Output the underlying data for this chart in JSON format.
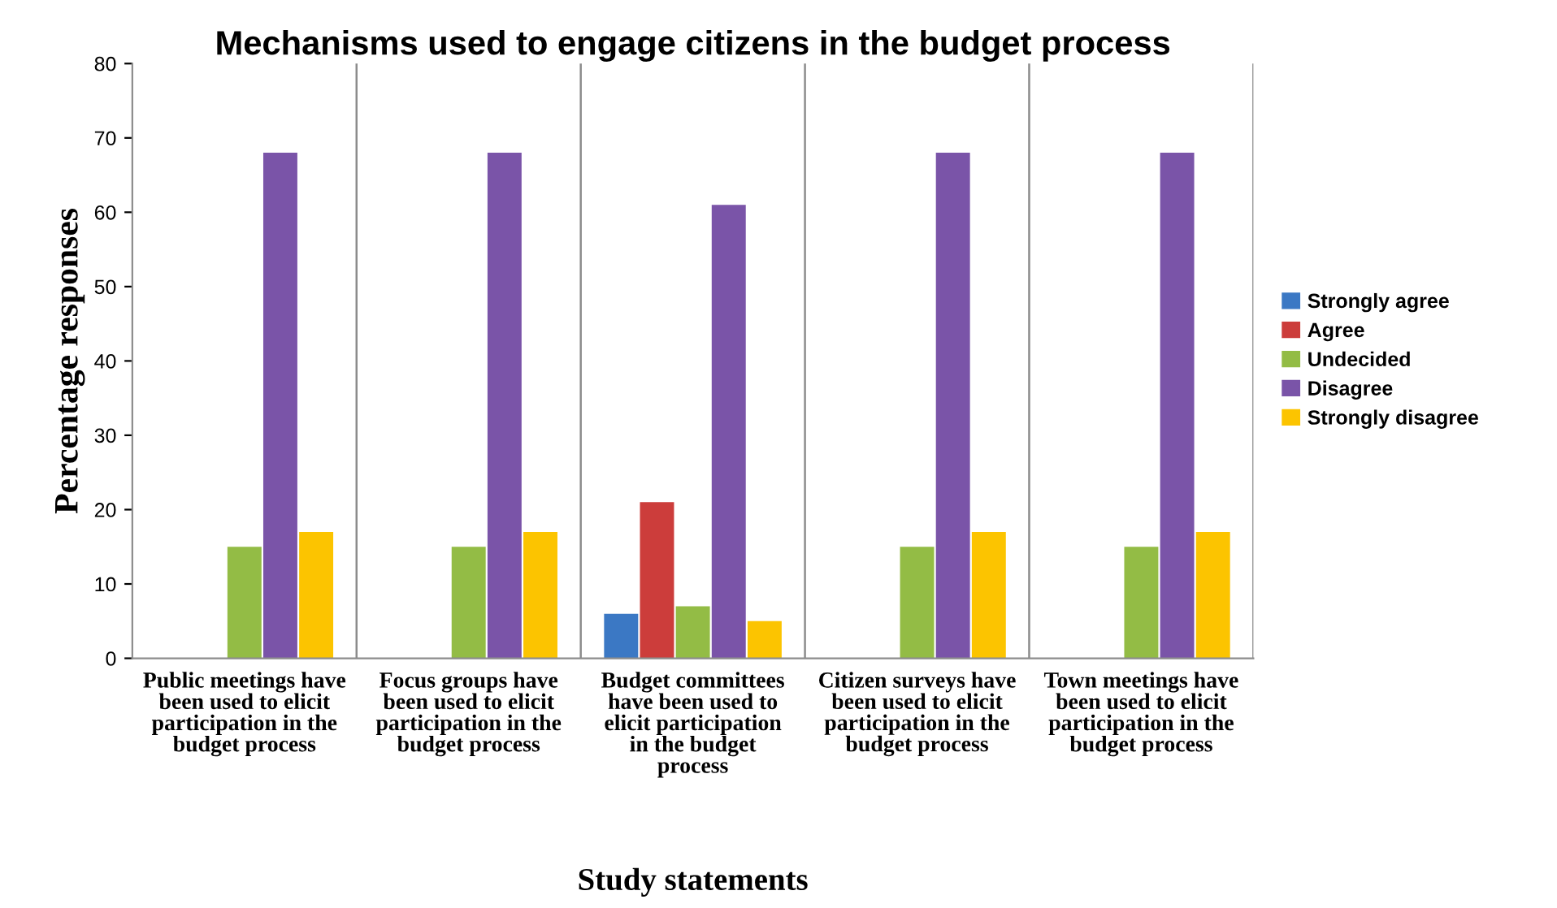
{
  "chart_data": {
    "type": "bar",
    "title": "Mechanisms used to engage citizens in the budget process",
    "xlabel": "Study statements",
    "ylabel": "Percentage responses",
    "categories": [
      "Public meetings have been used to elicit participation in the budget process",
      "Focus groups have been used to elicit participation in the budget process",
      "Budget committees have been used to elicit participation in the budget process",
      "Citizen surveys have been used to elicit participation in the budget process",
      "Town meetings have been used to elicit participation in the budget process"
    ],
    "series": [
      {
        "name": "Strongly agree",
        "color": "#3b78c4",
        "values": [
          0,
          0,
          6,
          0,
          0
        ]
      },
      {
        "name": "Agree",
        "color": "#cc3d3b",
        "values": [
          0,
          0,
          21,
          0,
          0
        ]
      },
      {
        "name": "Undecided",
        "color": "#93bc45",
        "values": [
          15,
          15,
          7,
          15,
          15
        ]
      },
      {
        "name": "Disagree",
        "color": "#7a54a8",
        "values": [
          68,
          68,
          61,
          68,
          68
        ]
      },
      {
        "name": "Strongly disagree",
        "color": "#fcc400",
        "values": [
          17,
          17,
          5,
          17,
          17
        ]
      }
    ],
    "ylim": [
      0,
      80
    ],
    "yticks": [
      0,
      10,
      20,
      30,
      40,
      50,
      60,
      70,
      80
    ],
    "grid": "x",
    "legend": "right"
  }
}
